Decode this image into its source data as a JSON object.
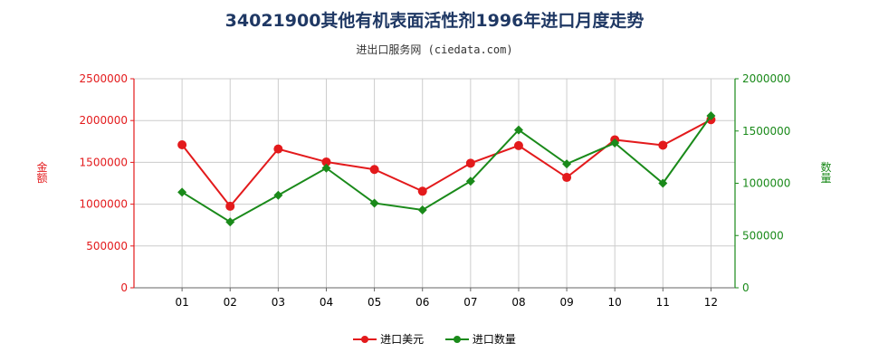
{
  "chart_data": {
    "type": "line",
    "title": "34021900其他有机表面活性剂1996年进口月度走势",
    "subtitle": "进出口服务网 (ciedata.com)",
    "categories": [
      "01",
      "02",
      "03",
      "04",
      "05",
      "06",
      "07",
      "08",
      "09",
      "10",
      "11",
      "12"
    ],
    "series": [
      {
        "name": "进口美元",
        "axis": "left",
        "color": "#e31a1c",
        "values": [
          1710000,
          975000,
          1660000,
          1505000,
          1415000,
          1155000,
          1490000,
          1700000,
          1320000,
          1770000,
          1705000,
          2010000
        ]
      },
      {
        "name": "进口数量",
        "axis": "right",
        "color": "#1a8a1a",
        "values": [
          915000,
          630000,
          885000,
          1145000,
          810000,
          745000,
          1020000,
          1510000,
          1185000,
          1385000,
          1000000,
          1645000
        ]
      }
    ],
    "ylabel_left": "金额",
    "ylabel_right": "数量",
    "ylim_left": [
      0,
      2500000
    ],
    "ylim_right": [
      0,
      2000000
    ],
    "yticks_left": [
      "0",
      "500000",
      "1000000",
      "1500000",
      "2000000",
      "2500000"
    ],
    "yticks_right": [
      "0",
      "500000",
      "1000000",
      "1500000",
      "2000000"
    ],
    "grid": true,
    "legend_position": "bottom"
  }
}
